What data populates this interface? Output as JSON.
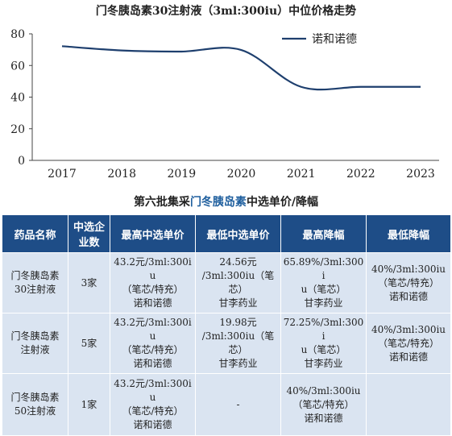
{
  "chart_data": {
    "type": "line",
    "title": "门冬胰岛素30注射液（3ml:300iu）中位价格走势",
    "x": [
      "2017",
      "2018",
      "2019",
      "2020",
      "2021",
      "2022",
      "2023"
    ],
    "series": [
      {
        "name": "诺和诺德",
        "values": [
          72.2,
          69.5,
          68.8,
          69.8,
          46.5,
          46.5,
          46.5
        ],
        "color": "#1e3f6e"
      }
    ],
    "ylim": [
      0,
      80
    ],
    "yticks": [
      0,
      20,
      40,
      60,
      80
    ],
    "grid": false,
    "legend": "top-right"
  },
  "table": {
    "title_prefix": "第六批集采",
    "title_highlight": "门冬胰岛素",
    "title_suffix": "中选单价/降幅",
    "headers": [
      "药品名称",
      "中选企业数",
      "最高中选单价",
      "最低中选单价",
      "最高降幅",
      "最低降幅"
    ],
    "rows": [
      {
        "name": [
          "门冬胰岛素",
          "30注射液"
        ],
        "count": "3家",
        "max_price": [
          "43.2元/3ml:300iu",
          "（笔芯/特充）",
          "诺和诺德"
        ],
        "min_price": [
          "24.56元",
          "/3ml:300iu（笔",
          "芯）",
          "甘李药业"
        ],
        "max_drop": [
          "65.89%/3ml:300i",
          "u（笔芯）",
          "甘李药业"
        ],
        "min_drop": [
          "40%/3ml:300iu",
          "（笔芯/特充）",
          "诺和诺德"
        ]
      },
      {
        "name": [
          "门冬胰岛素",
          "注射液"
        ],
        "count": "5家",
        "max_price": [
          "43.2元/3ml:300iu",
          "（笔芯/特充）",
          "诺和诺德"
        ],
        "min_price": [
          "19.98元",
          "/3ml:300iu（笔",
          "芯）",
          "甘李药业"
        ],
        "max_drop": [
          "72.25%/3ml:300i",
          "u（笔芯）",
          "甘李药业"
        ],
        "min_drop": [
          "40%/3ml:300iu",
          "（笔芯/特充）",
          "诺和诺德"
        ]
      },
      {
        "name": [
          "门冬胰岛素",
          "50注射液"
        ],
        "count": "1家",
        "max_price": [
          "43.2元/3ml:300iu",
          "（笔芯/特充）",
          "诺和诺德"
        ],
        "min_price": [
          "-"
        ],
        "max_drop": [
          "40%/3ml:300iu",
          "（笔芯/特充）",
          "诺和诺德"
        ],
        "min_drop": []
      }
    ]
  }
}
